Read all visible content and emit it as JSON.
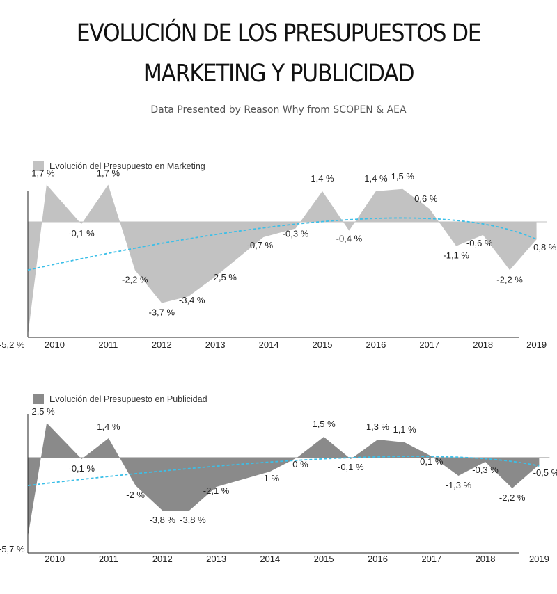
{
  "header": {
    "title_line1": "EVOLUCIÓN DE LOS PRESUPUESTOS DE",
    "title_line2": "MARKETING Y PUBLICIDAD",
    "subtitle": "Data Presented by Reason Why from SCOPEN & AEA"
  },
  "colors": {
    "marketing_fill": "#c2c2c2",
    "publicidad_fill": "#8a8a8a",
    "trend": "#3bbfe8"
  },
  "chart_data": [
    {
      "type": "area",
      "legend": "Evolución del Presupuesto en Marketing",
      "legend_placement": "top-left",
      "series": [
        {
          "name": "Evolución del Presupuesto en Marketing",
          "points": [
            {
              "x": 2009.5,
              "y": -5.2,
              "label": "-5,2 %"
            },
            {
              "x": 2009.85,
              "y": 1.7,
              "label": "1,7 %"
            },
            {
              "x": 2010.5,
              "y": -0.1,
              "label": "-0,1 %"
            },
            {
              "x": 2011.0,
              "y": 1.7,
              "label": "1,7 %"
            },
            {
              "x": 2011.5,
              "y": -2.2,
              "label": "-2,2 %"
            },
            {
              "x": 2012.0,
              "y": -3.7,
              "label": "-3,7 %"
            },
            {
              "x": 2012.5,
              "y": -3.4,
              "label": "-3,4 %"
            },
            {
              "x": 2013.0,
              "y": -2.5,
              "label": "-2,5 %"
            },
            {
              "x": 2013.9,
              "y": -0.7,
              "label": "-0,7 %"
            },
            {
              "x": 2014.5,
              "y": -0.3,
              "label": "-0,3 %"
            },
            {
              "x": 2015.0,
              "y": 1.4,
              "label": "1,4 %"
            },
            {
              "x": 2015.5,
              "y": -0.4,
              "label": "-0,4 %"
            },
            {
              "x": 2016.0,
              "y": 1.4,
              "label": "1,4 %"
            },
            {
              "x": 2016.5,
              "y": 1.5,
              "label": "1,5 %"
            },
            {
              "x": 2017.0,
              "y": 0.6,
              "label": "0,6 %"
            },
            {
              "x": 2017.5,
              "y": -1.1,
              "label": "-1,1 %"
            },
            {
              "x": 2018.0,
              "y": -0.6,
              "label": "-0,6 %"
            },
            {
              "x": 2018.5,
              "y": -2.2,
              "label": "-2,2 %"
            },
            {
              "x": 2019.0,
              "y": -0.8,
              "label": "-0,8 %"
            }
          ]
        }
      ],
      "trend": {
        "style": "dashed",
        "x": [
          2009.5,
          2015.5,
          2019.0
        ],
        "y": [
          -2.2,
          0.1,
          -0.8
        ]
      },
      "x_ticks": [
        "2010",
        "2011",
        "2012",
        "2013",
        "2014",
        "2015",
        "2016",
        "2017",
        "2018",
        "2019"
      ],
      "x_tick_values": [
        2010,
        2011,
        2012,
        2013,
        2014,
        2015,
        2016,
        2017,
        2018,
        2019
      ],
      "xlim": [
        2009.5,
        2019.0
      ],
      "ylim": [
        -6.0,
        2.0
      ]
    },
    {
      "type": "area",
      "legend": "Evolución del Presupuesto en Publicidad",
      "legend_placement": "top-left",
      "series": [
        {
          "name": "Evolución del Presupuesto en Publicidad",
          "points": [
            {
              "x": 2009.5,
              "y": -5.7,
              "label": "-5,7 %"
            },
            {
              "x": 2009.85,
              "y": 2.5,
              "label": "2,5 %"
            },
            {
              "x": 2010.5,
              "y": -0.1,
              "label": "-0,1 %"
            },
            {
              "x": 2011.0,
              "y": 1.4,
              "label": "1,4 %"
            },
            {
              "x": 2011.5,
              "y": -2.0,
              "label": "-2 %"
            },
            {
              "x": 2012.0,
              "y": -3.8,
              "label": "-3,8 %"
            },
            {
              "x": 2012.5,
              "y": -3.8,
              "label": "-3,8 %"
            },
            {
              "x": 2013.0,
              "y": -2.1,
              "label": "-2,1 %"
            },
            {
              "x": 2014.0,
              "y": -1.0,
              "label": "-1 %"
            },
            {
              "x": 2014.5,
              "y": 0.0,
              "label": "0 %"
            },
            {
              "x": 2015.0,
              "y": 1.5,
              "label": "1,5 %"
            },
            {
              "x": 2015.5,
              "y": -0.1,
              "label": "-0,1 %"
            },
            {
              "x": 2016.0,
              "y": 1.3,
              "label": "1,3 %"
            },
            {
              "x": 2016.5,
              "y": 1.1,
              "label": "1,1 %"
            },
            {
              "x": 2017.0,
              "y": 0.1,
              "label": "0,1 %"
            },
            {
              "x": 2017.5,
              "y": -1.3,
              "label": "-1,3 %"
            },
            {
              "x": 2018.0,
              "y": -0.3,
              "label": "-0,3 %"
            },
            {
              "x": 2018.5,
              "y": -2.2,
              "label": "-2,2 %"
            },
            {
              "x": 2019.0,
              "y": -0.5,
              "label": "-0,5 %"
            }
          ]
        }
      ],
      "trend": {
        "style": "dashed",
        "x": [
          2009.5,
          2015.5,
          2019.0
        ],
        "y": [
          -2.0,
          0.0,
          -0.6
        ]
      },
      "x_ticks": [
        "2010",
        "2011",
        "2012",
        "2013",
        "2014",
        "2015",
        "2016",
        "2017",
        "2018",
        "2019"
      ],
      "x_tick_values": [
        2010,
        2011,
        2012,
        2013,
        2014,
        2015,
        2016,
        2017,
        2018,
        2019
      ],
      "xlim": [
        2009.5,
        2019.0
      ],
      "ylim": [
        -6.0,
        3.0
      ]
    }
  ]
}
